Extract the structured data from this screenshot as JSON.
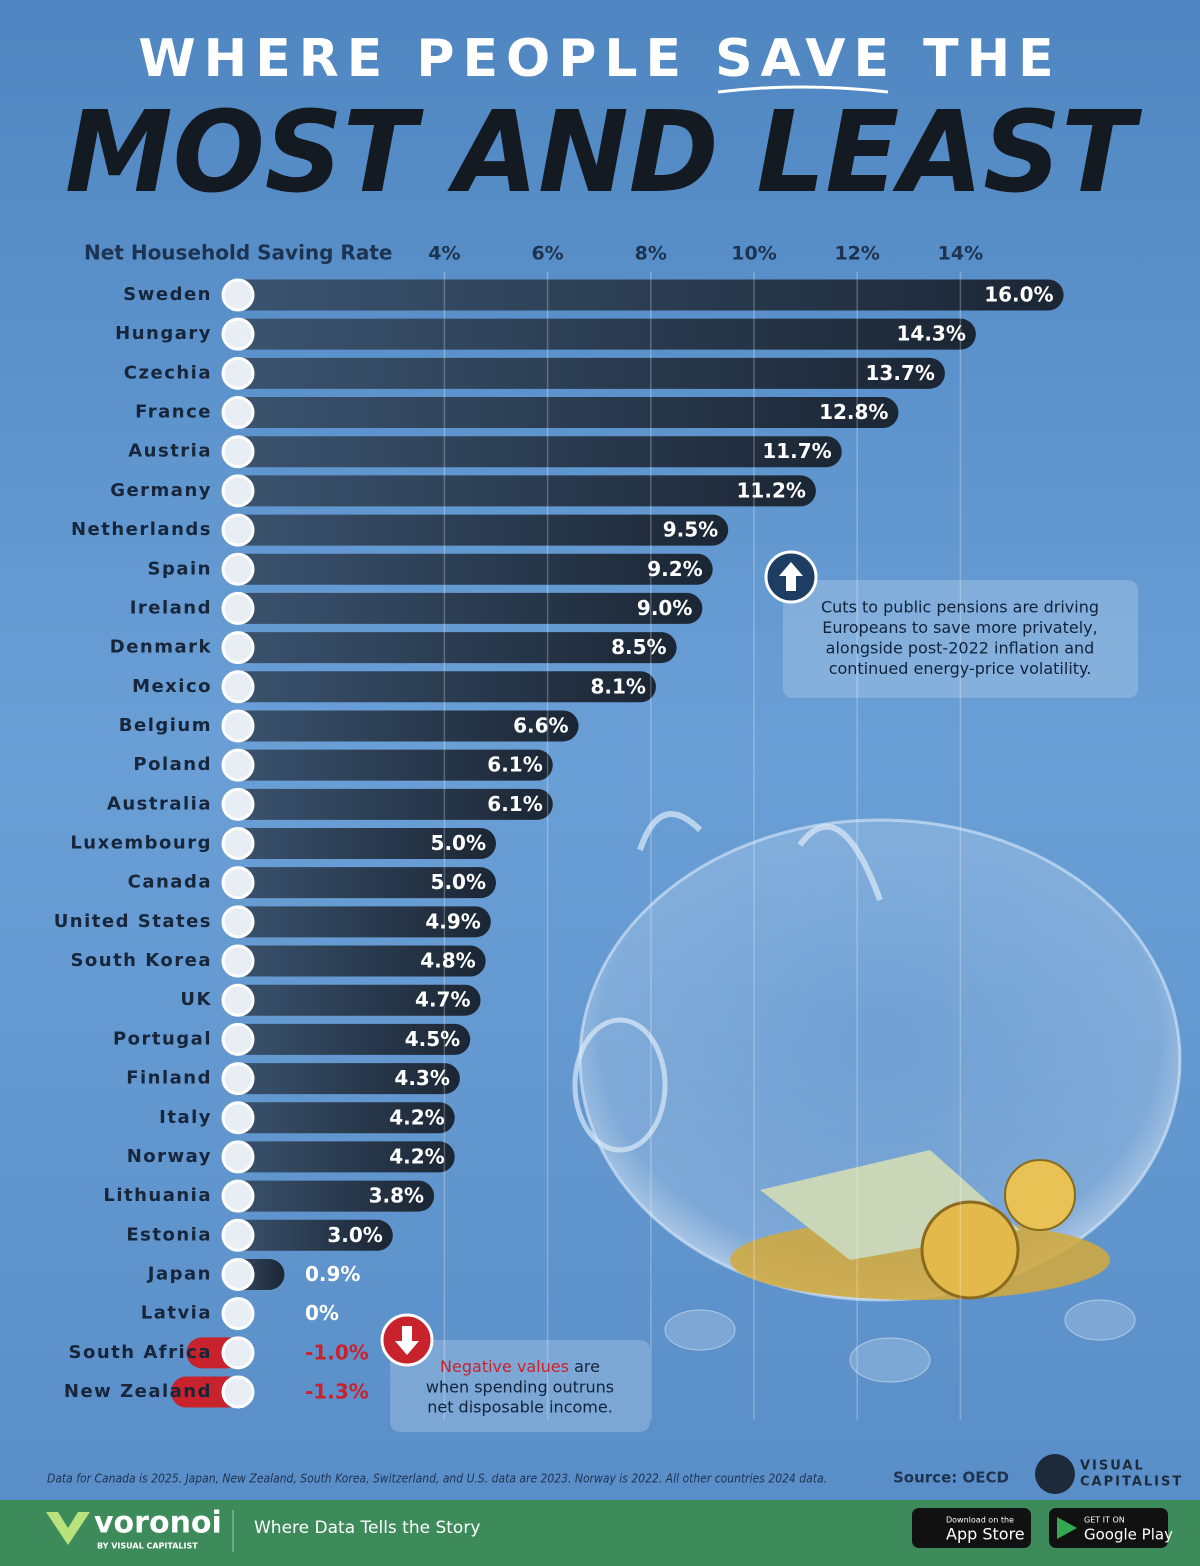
{
  "chart_data": {
    "type": "bar",
    "title": [
      "WHERE PEOPLE SAVE THE",
      "MOST AND LEAST"
    ],
    "xlabel": "Net Household Saving Rate",
    "categories": [
      "Sweden",
      "Hungary",
      "Czechia",
      "France",
      "Austria",
      "Germany",
      "Netherlands",
      "Spain",
      "Ireland",
      "Denmark",
      "Mexico",
      "Belgium",
      "Poland",
      "Australia",
      "Luxembourg",
      "Canada",
      "United States",
      "South Korea",
      "UK",
      "Portugal",
      "Finland",
      "Italy",
      "Norway",
      "Lithuania",
      "Estonia",
      "Japan",
      "Latvia",
      "South Africa",
      "New Zealand"
    ],
    "values": [
      16.0,
      14.3,
      13.7,
      12.8,
      11.7,
      11.2,
      9.5,
      9.2,
      9.0,
      8.5,
      8.1,
      6.6,
      6.1,
      6.1,
      5.0,
      5.0,
      4.9,
      4.8,
      4.7,
      4.5,
      4.3,
      4.2,
      4.2,
      3.8,
      3.0,
      0.9,
      0,
      -1.0,
      -1.3
    ],
    "value_labels": [
      "16.0%",
      "14.3%",
      "13.7%",
      "12.8%",
      "11.7%",
      "11.2%",
      "9.5%",
      "9.2%",
      "9.0%",
      "8.5%",
      "8.1%",
      "6.6%",
      "6.1%",
      "6.1%",
      "5.0%",
      "5.0%",
      "4.9%",
      "4.8%",
      "4.7%",
      "4.5%",
      "4.3%",
      "4.2%",
      "4.2%",
      "3.8%",
      "3.0%",
      "0.9%",
      "0%",
      "-1.0%",
      "-1.3%"
    ],
    "color": "#1e2b3b",
    "negative_color": "#c8232c",
    "xlim": [
      -4,
      17
    ],
    "xticks": [
      {
        "value": 4,
        "label": "4%"
      },
      {
        "value": 6,
        "label": "6%"
      },
      {
        "value": 8,
        "label": "8%"
      },
      {
        "value": 10,
        "label": "10%"
      },
      {
        "value": 12,
        "label": "12%"
      },
      {
        "value": 14,
        "label": "14%"
      }
    ],
    "grid": true,
    "annotations": [
      {
        "text": [
          "Cuts to public pensions are driving",
          "Europeans to save more privately,",
          "alongside post-2022 inflation and",
          "continued energy-price volatility."
        ]
      },
      {
        "highlight": "Negative values",
        "text": [
          " are",
          "when spending outruns",
          "net disposable income."
        ]
      }
    ],
    "footnote": "Data for Canada is 2025. Japan, New Zealand, South Korea, Switzerland, and U.S. data are 2023. Norway is 2022. All other countries 2024 data.",
    "source": "Source: OECD"
  },
  "footer": {
    "brand": "voronoi",
    "byline": "BY VISUAL CAPITALIST",
    "tagline": "Where Data Tells the Story",
    "publisher": [
      "VISUAL",
      "CAPITALIST"
    ],
    "app_store": [
      "Download on the",
      "App Store"
    ],
    "google_play": [
      "GET IT ON",
      "Google Play"
    ]
  }
}
